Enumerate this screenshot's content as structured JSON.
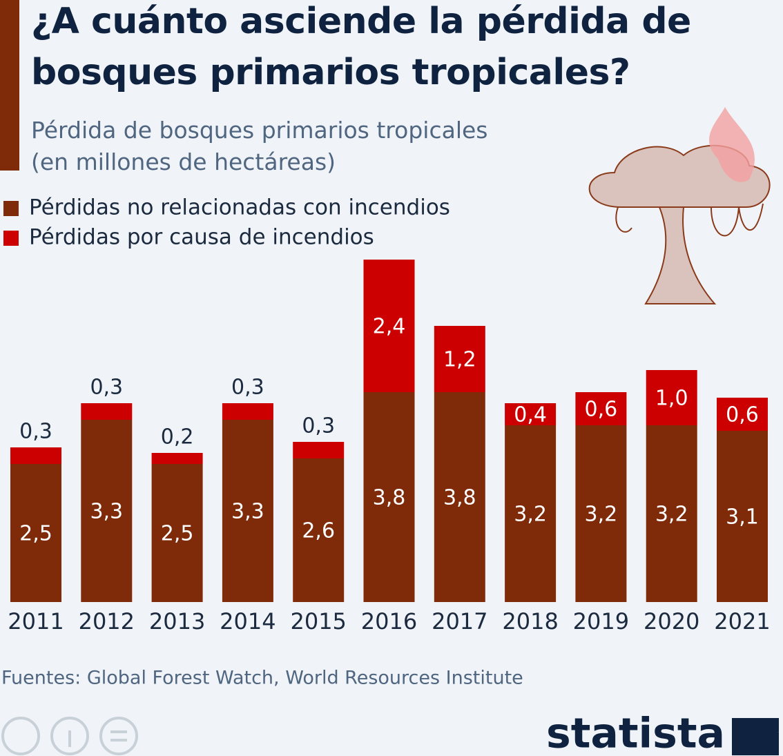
{
  "chart_data": {
    "type": "stacked-bar",
    "title": "¿A cuánto asciende la pérdida de bosques primarios tropicales?",
    "subtitle": "Pérdida de bosques primarios tropicales (en millones de hectáreas)",
    "categories": [
      "2011",
      "2012",
      "2013",
      "2014",
      "2015",
      "2016",
      "2017",
      "2018",
      "2019",
      "2020",
      "2021"
    ],
    "series": [
      {
        "name": "Pérdidas no relacionadas con incendios",
        "color": "#7f2b0a",
        "values": [
          2.5,
          3.3,
          2.5,
          3.3,
          2.6,
          3.8,
          3.8,
          3.2,
          3.2,
          3.2,
          3.1
        ],
        "value_labels": [
          "2,5",
          "3,3",
          "2,5",
          "3,3",
          "2,6",
          "3,8",
          "3,8",
          "3,2",
          "3,2",
          "3,2",
          "3,1"
        ]
      },
      {
        "name": "Pérdidas por causa de incendios",
        "color": "#cc0000",
        "values": [
          0.3,
          0.3,
          0.2,
          0.3,
          0.3,
          2.4,
          1.2,
          0.4,
          0.6,
          1.0,
          0.6
        ],
        "value_labels": [
          "0,3",
          "0,3",
          "0,2",
          "0,3",
          "0,3",
          "2,4",
          "1,2",
          "0,4",
          "0,6",
          "1,0",
          "0,6"
        ]
      }
    ],
    "source": "Fuentes: Global Forest Watch, World Resources Institute",
    "brand": "statista"
  }
}
